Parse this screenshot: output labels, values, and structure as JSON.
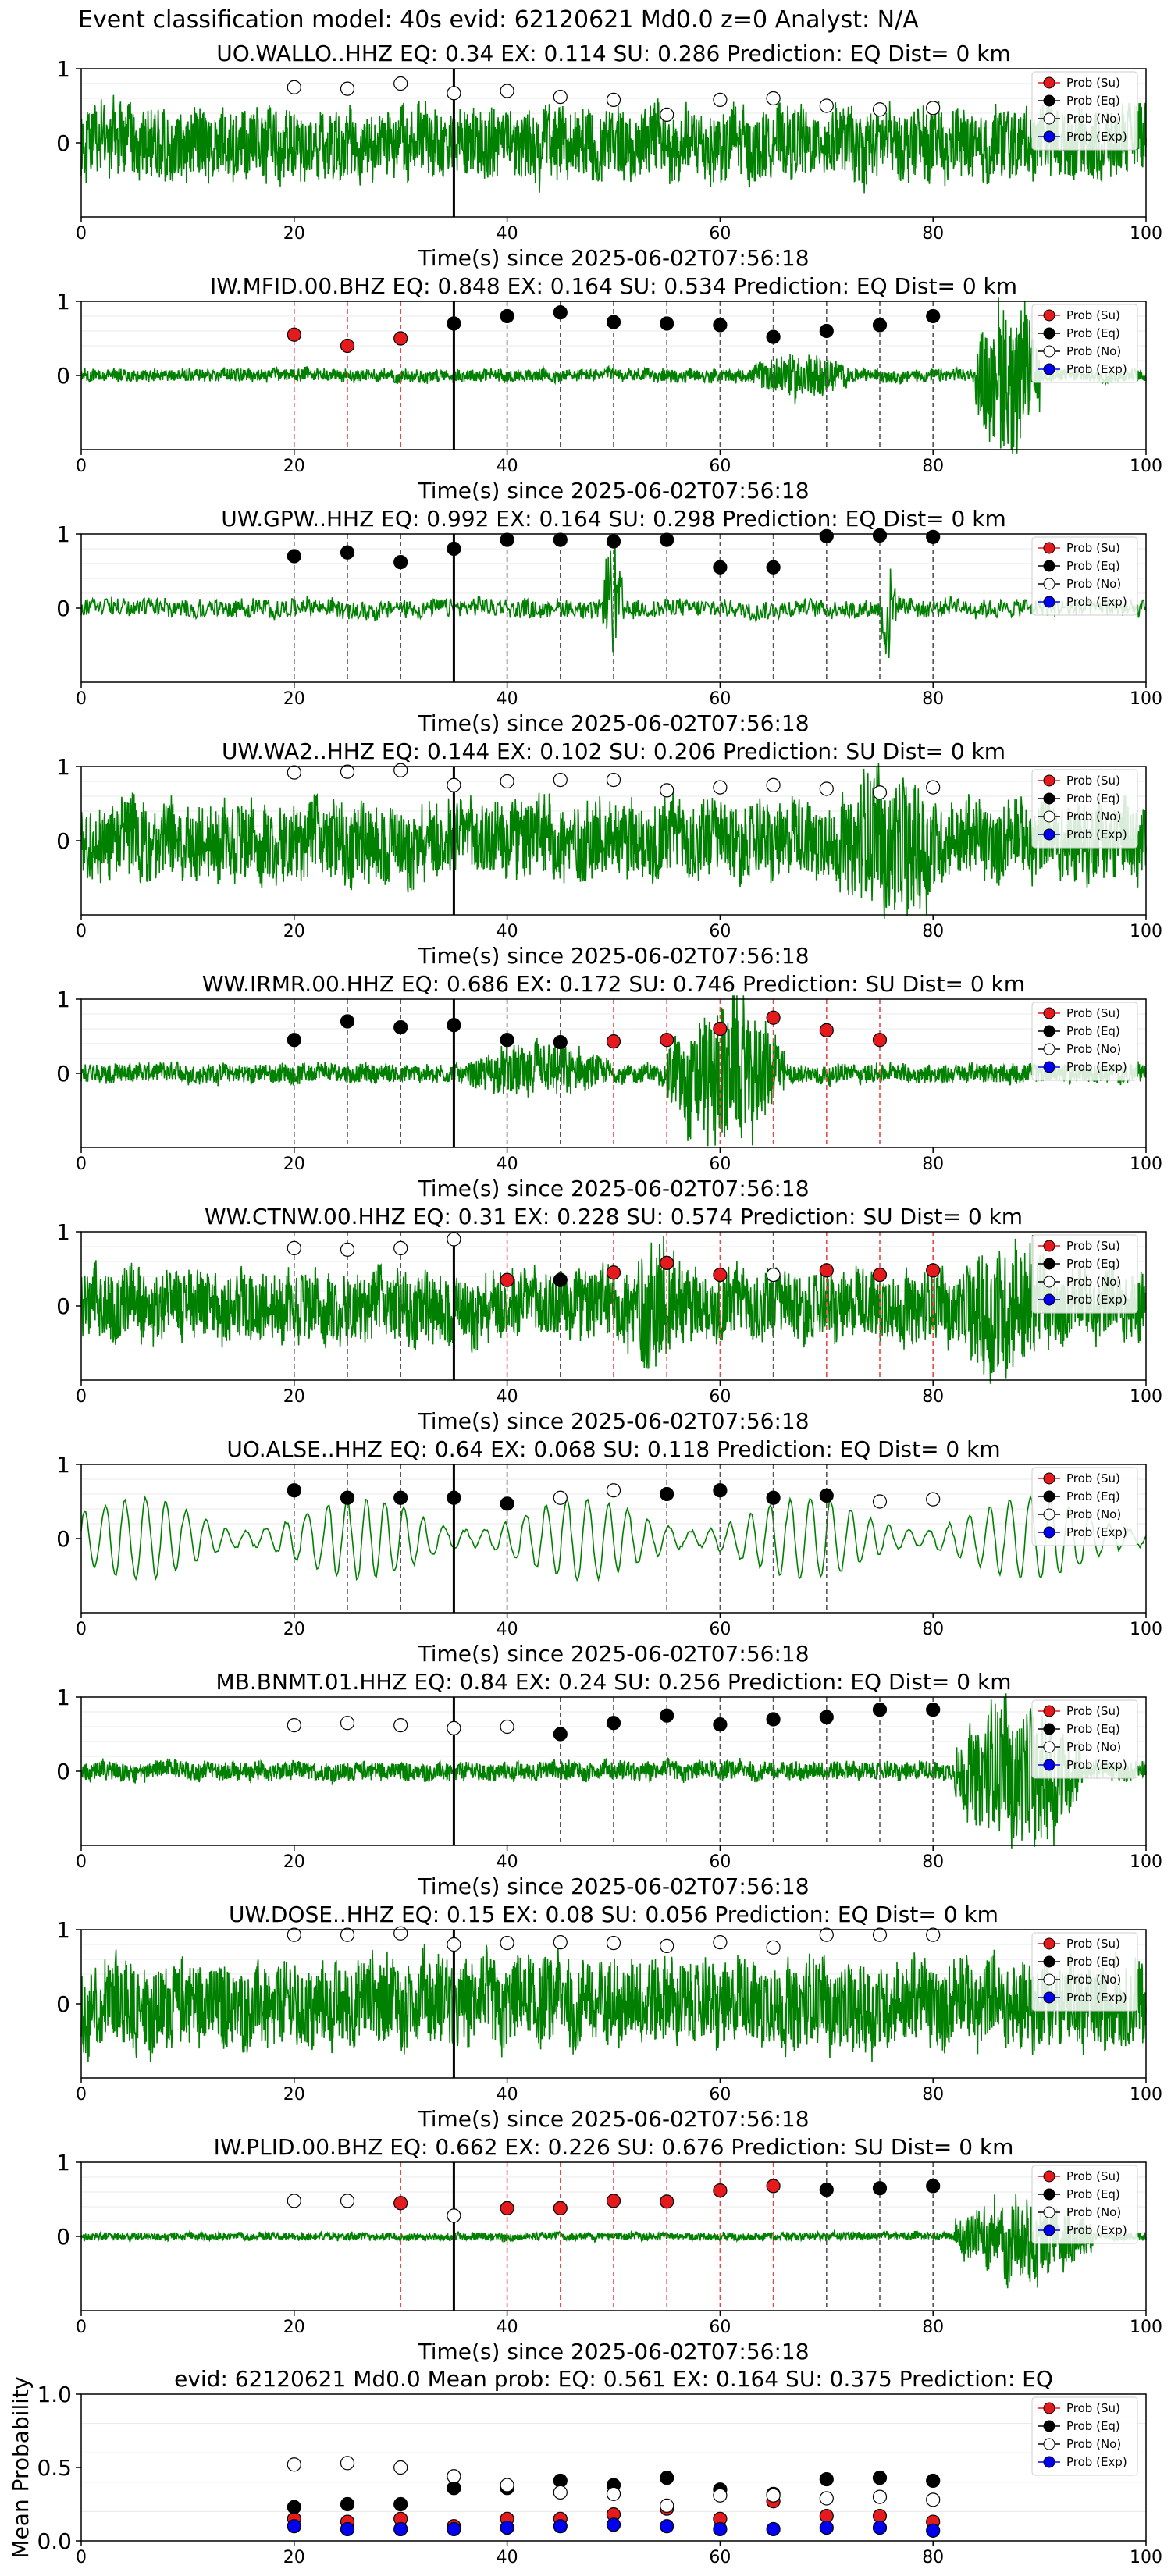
{
  "figure_title": "Event classification model: 40s evid: 62120621 Md0.0 z=0 Analyst: N/A",
  "xlabel": "Time(s) since 2025-06-02T07:56:18",
  "legend": [
    "Prob (Su)",
    "Prob (Eq)",
    "Prob (No)",
    "Prob (Exp)"
  ],
  "colors": {
    "waveform": "#008000",
    "su": "#e41a1c",
    "eq": "#000000",
    "no": "#ffffff",
    "exp": "#0000ee",
    "su_line": "#e8474a",
    "eq_line": "#555555"
  },
  "chart_data": [
    {
      "type": "line",
      "title": "UO.WALLO..HHZ   EQ: 0.34  EX: 0.114  SU: 0.286   Prediction: EQ    Dist= 0 km",
      "xlim": [
        0,
        100
      ],
      "ylim": [
        -1,
        1
      ],
      "yticks": [
        1,
        0
      ],
      "xticks": [
        0,
        20,
        40,
        60,
        80,
        100
      ],
      "amp": 0.45,
      "density": "high",
      "burst": [],
      "windows": [
        20,
        25,
        30,
        35,
        40,
        45,
        50,
        55,
        60,
        65,
        70,
        75,
        80
      ],
      "class": [
        "no",
        "no",
        "no",
        "no",
        "no",
        "no",
        "no",
        "no",
        "no",
        "no",
        "no",
        "no",
        "no"
      ],
      "value": [
        0.75,
        0.73,
        0.8,
        0.67,
        0.7,
        0.62,
        0.58,
        0.38,
        0.58,
        0.6,
        0.5,
        0.45,
        0.47
      ],
      "lines": []
    },
    {
      "type": "line",
      "title": "IW.MFID.00.BHZ   EQ: 0.848  EX: 0.164  SU: 0.534   Prediction: EQ    Dist= 0 km",
      "xlim": [
        0,
        100
      ],
      "ylim": [
        -1,
        1
      ],
      "yticks": [
        1,
        0
      ],
      "xticks": [
        0,
        20,
        40,
        60,
        80,
        100
      ],
      "amp": 0.08,
      "density": "high",
      "burst": [
        [
          63,
          72,
          0.3
        ],
        [
          84,
          90,
          1.0
        ]
      ],
      "windows": [
        20,
        25,
        30,
        35,
        40,
        45,
        50,
        55,
        60,
        65,
        70,
        75,
        80
      ],
      "class": [
        "su",
        "su",
        "su",
        "eq",
        "eq",
        "eq",
        "eq",
        "eq",
        "eq",
        "eq",
        "eq",
        "eq",
        "eq"
      ],
      "value": [
        0.55,
        0.4,
        0.5,
        0.7,
        0.8,
        0.85,
        0.72,
        0.7,
        0.68,
        0.52,
        0.6,
        0.68,
        0.8
      ],
      "lines": [
        "su",
        "su",
        "su",
        "eq",
        "eq",
        "eq",
        "eq",
        "eq",
        "eq",
        "eq",
        "eq",
        "eq",
        "eq"
      ]
    },
    {
      "type": "line",
      "title": "UW.GPW..HHZ   EQ: 0.992  EX: 0.164  SU: 0.298   Prediction: EQ    Dist= 0 km",
      "xlim": [
        0,
        100
      ],
      "ylim": [
        -1,
        1
      ],
      "yticks": [
        1,
        0
      ],
      "xticks": [
        0,
        20,
        40,
        60,
        80,
        100
      ],
      "amp": 0.12,
      "density": "mid",
      "burst": [
        [
          49,
          51,
          0.8
        ],
        [
          75,
          76.5,
          0.7
        ]
      ],
      "windows": [
        20,
        25,
        30,
        35,
        40,
        45,
        50,
        55,
        60,
        65,
        70,
        75,
        80
      ],
      "class": [
        "eq",
        "eq",
        "eq",
        "eq",
        "eq",
        "eq",
        "eq",
        "eq",
        "eq",
        "eq",
        "eq",
        "eq",
        "eq"
      ],
      "value": [
        0.7,
        0.75,
        0.62,
        0.8,
        0.92,
        0.92,
        0.9,
        0.92,
        0.55,
        0.55,
        0.97,
        0.98,
        0.96
      ],
      "lines": [
        "eq",
        "eq",
        "eq",
        "eq",
        "eq",
        "eq",
        "eq",
        "eq",
        "eq",
        "eq",
        "eq",
        "eq",
        "eq"
      ]
    },
    {
      "type": "line",
      "title": "UW.WA2..HHZ   EQ: 0.144  EX: 0.102  SU: 0.206   Prediction: SU    Dist= 0 km",
      "xlim": [
        0,
        100
      ],
      "ylim": [
        -1,
        1
      ],
      "yticks": [
        1,
        0
      ],
      "xticks": [
        0,
        20,
        40,
        60,
        80,
        100
      ],
      "amp": 0.5,
      "density": "high",
      "burst": [
        [
          70,
          82,
          0.9
        ]
      ],
      "windows": [
        20,
        25,
        30,
        35,
        40,
        45,
        50,
        55,
        60,
        65,
        70,
        75,
        80
      ],
      "class": [
        "no",
        "no",
        "no",
        "no",
        "no",
        "no",
        "no",
        "no",
        "no",
        "no",
        "no",
        "no",
        "no"
      ],
      "value": [
        0.92,
        0.93,
        0.95,
        0.75,
        0.8,
        0.82,
        0.82,
        0.68,
        0.72,
        0.75,
        0.7,
        0.65,
        0.72
      ],
      "lines": []
    },
    {
      "type": "line",
      "title": "WW.IRMR.00.HHZ   EQ: 0.686  EX: 0.172  SU: 0.746   Prediction: SU    Dist= 0 km",
      "xlim": [
        0,
        100
      ],
      "ylim": [
        -1,
        1
      ],
      "yticks": [
        1,
        0
      ],
      "xticks": [
        0,
        20,
        40,
        60,
        80,
        100
      ],
      "amp": 0.12,
      "density": "high",
      "burst": [
        [
          36,
          50,
          0.35
        ],
        [
          55,
          66,
          0.9
        ]
      ],
      "windows": [
        20,
        25,
        30,
        35,
        40,
        45,
        50,
        55,
        60,
        65,
        70,
        75
      ],
      "class": [
        "eq",
        "eq",
        "eq",
        "eq",
        "eq",
        "eq",
        "su",
        "su",
        "su",
        "su",
        "su",
        "su"
      ],
      "value": [
        0.45,
        0.7,
        0.62,
        0.65,
        0.45,
        0.42,
        0.43,
        0.45,
        0.6,
        0.75,
        0.58,
        0.45
      ],
      "lines": [
        "eq",
        "eq",
        "eq",
        "eq",
        "eq",
        "eq",
        "su",
        "su",
        "su",
        "su",
        "su",
        "su"
      ]
    },
    {
      "type": "line",
      "title": "WW.CTNW.00.HHZ   EQ: 0.31  EX: 0.228  SU: 0.574   Prediction: SU    Dist= 0 km",
      "xlim": [
        0,
        100
      ],
      "ylim": [
        -1,
        1
      ],
      "yticks": [
        1,
        0
      ],
      "xticks": [
        0,
        20,
        40,
        60,
        80,
        100
      ],
      "amp": 0.45,
      "density": "high",
      "burst": [
        [
          50,
          58,
          0.8
        ],
        [
          82,
          92,
          0.9
        ]
      ],
      "windows": [
        20,
        25,
        30,
        35,
        40,
        45,
        50,
        55,
        60,
        65,
        70,
        75,
        80
      ],
      "class": [
        "no",
        "no",
        "no",
        "no",
        "su",
        "eq",
        "su",
        "su",
        "su",
        "no",
        "su",
        "su",
        "su"
      ],
      "value": [
        0.78,
        0.76,
        0.78,
        0.9,
        0.35,
        0.35,
        0.45,
        0.58,
        0.42,
        0.42,
        0.48,
        0.42,
        0.48
      ],
      "lines": [
        "no",
        "no",
        "no",
        "no",
        "su",
        "eq",
        "su",
        "su",
        "su",
        "eq",
        "su",
        "su",
        "su"
      ]
    },
    {
      "type": "line",
      "title": "UO.ALSE..HHZ   EQ: 0.64  EX: 0.068  SU: 0.118   Prediction: EQ    Dist= 0 km",
      "xlim": [
        0,
        100
      ],
      "ylim": [
        -1,
        1
      ],
      "yticks": [
        1,
        0
      ],
      "xticks": [
        0,
        20,
        40,
        60,
        80,
        100
      ],
      "amp": 0.55,
      "density": "low",
      "burst": [],
      "windows": [
        20,
        25,
        30,
        35,
        40,
        45,
        50,
        55,
        60,
        65,
        70,
        75,
        80
      ],
      "class": [
        "eq",
        "eq",
        "eq",
        "eq",
        "eq",
        "no",
        "no",
        "eq",
        "eq",
        "eq",
        "eq",
        "no",
        "no"
      ],
      "value": [
        0.65,
        0.55,
        0.55,
        0.55,
        0.47,
        0.55,
        0.65,
        0.6,
        0.65,
        0.55,
        0.58,
        0.5,
        0.53
      ],
      "lines": [
        "eq",
        "eq",
        "eq",
        "eq",
        "eq",
        "none",
        "none",
        "eq",
        "eq",
        "eq",
        "eq",
        "none",
        "none"
      ]
    },
    {
      "type": "line",
      "title": "MB.BNMT.01.HHZ   EQ: 0.84  EX: 0.24  SU: 0.256   Prediction: EQ    Dist= 0 km",
      "xlim": [
        0,
        100
      ],
      "ylim": [
        -1,
        1
      ],
      "yticks": [
        1,
        0
      ],
      "xticks": [
        0,
        20,
        40,
        60,
        80,
        100
      ],
      "amp": 0.12,
      "density": "high",
      "burst": [
        [
          82,
          94,
          0.9
        ]
      ],
      "windows": [
        20,
        25,
        30,
        35,
        40,
        45,
        50,
        55,
        60,
        65,
        70,
        75,
        80
      ],
      "class": [
        "no",
        "no",
        "no",
        "no",
        "no",
        "eq",
        "eq",
        "eq",
        "eq",
        "eq",
        "eq",
        "eq",
        "eq"
      ],
      "value": [
        0.62,
        0.65,
        0.62,
        0.58,
        0.6,
        0.5,
        0.65,
        0.75,
        0.63,
        0.7,
        0.73,
        0.83,
        0.83
      ],
      "lines": [
        "none",
        "none",
        "none",
        "none",
        "none",
        "eq",
        "eq",
        "eq",
        "eq",
        "eq",
        "eq",
        "eq",
        "eq"
      ]
    },
    {
      "type": "line",
      "title": "UW.DOSE..HHZ   EQ: 0.15  EX: 0.08  SU: 0.056   Prediction: EQ    Dist= 0 km",
      "xlim": [
        0,
        100
      ],
      "ylim": [
        -1,
        1
      ],
      "yticks": [
        1,
        0
      ],
      "xticks": [
        0,
        20,
        40,
        60,
        80,
        100
      ],
      "amp": 0.55,
      "density": "high",
      "burst": [],
      "windows": [
        20,
        25,
        30,
        35,
        40,
        45,
        50,
        55,
        60,
        65,
        70,
        75,
        80
      ],
      "class": [
        "no",
        "no",
        "no",
        "no",
        "no",
        "no",
        "no",
        "no",
        "no",
        "no",
        "no",
        "no",
        "no"
      ],
      "value": [
        0.93,
        0.93,
        0.95,
        0.8,
        0.82,
        0.83,
        0.82,
        0.78,
        0.83,
        0.76,
        0.93,
        0.93,
        0.93
      ],
      "lines": []
    },
    {
      "type": "line",
      "title": "IW.PLID.00.BHZ   EQ: 0.662  EX: 0.226  SU: 0.676   Prediction: SU    Dist= 0 km",
      "xlim": [
        0,
        100
      ],
      "ylim": [
        -1,
        1
      ],
      "yticks": [
        1,
        0
      ],
      "xticks": [
        0,
        20,
        40,
        60,
        80,
        100
      ],
      "amp": 0.05,
      "density": "high",
      "burst": [
        [
          82,
          95,
          0.5
        ]
      ],
      "windows": [
        20,
        25,
        30,
        35,
        40,
        45,
        50,
        55,
        60,
        65,
        70,
        75,
        80
      ],
      "class": [
        "no",
        "no",
        "su",
        "no",
        "su",
        "su",
        "su",
        "su",
        "su",
        "su",
        "eq",
        "eq",
        "eq"
      ],
      "value": [
        0.48,
        0.48,
        0.45,
        0.28,
        0.38,
        0.38,
        0.48,
        0.47,
        0.62,
        0.68,
        0.63,
        0.65,
        0.68
      ],
      "lines": [
        "none",
        "none",
        "su",
        "none",
        "su",
        "su",
        "su",
        "su",
        "su",
        "su",
        "eq",
        "eq",
        "eq"
      ]
    },
    {
      "type": "scatter",
      "title": "evid: 62120621  Md0.0   Mean prob:   EQ: 0.561  EX: 0.164  SU: 0.375   Prediction: EQ",
      "ylabel": "Mean Probability",
      "xlim": [
        0,
        100
      ],
      "ylim": [
        0,
        1
      ],
      "yticks": [
        "1.0",
        "0.5",
        "0.0"
      ],
      "xticks": [
        0,
        20,
        40,
        60,
        80,
        100
      ],
      "x": [
        20,
        25,
        30,
        35,
        40,
        45,
        50,
        55,
        60,
        65,
        70,
        75,
        80
      ],
      "series": [
        {
          "name": "Prob (Su)",
          "key": "su",
          "values": [
            0.15,
            0.13,
            0.15,
            0.1,
            0.15,
            0.15,
            0.18,
            0.22,
            0.15,
            0.27,
            0.17,
            0.17,
            0.13
          ]
        },
        {
          "name": "Prob (Eq)",
          "key": "eq",
          "values": [
            0.23,
            0.25,
            0.25,
            0.36,
            0.36,
            0.41,
            0.38,
            0.43,
            0.35,
            0.32,
            0.42,
            0.43,
            0.41
          ]
        },
        {
          "name": "Prob (No)",
          "key": "no",
          "values": [
            0.52,
            0.53,
            0.5,
            0.44,
            0.38,
            0.33,
            0.32,
            0.24,
            0.31,
            0.31,
            0.29,
            0.3,
            0.28
          ]
        },
        {
          "name": "Prob (Exp)",
          "key": "exp",
          "values": [
            0.1,
            0.08,
            0.08,
            0.08,
            0.09,
            0.1,
            0.11,
            0.1,
            0.08,
            0.08,
            0.09,
            0.09,
            0.07
          ]
        }
      ]
    }
  ]
}
